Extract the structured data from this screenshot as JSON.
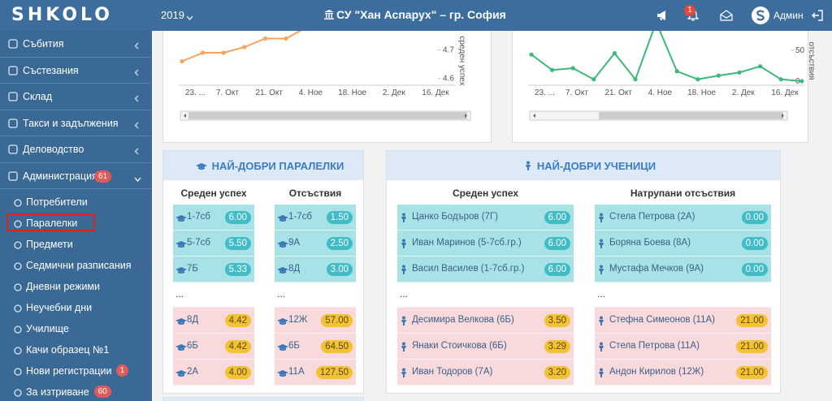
{
  "header": {
    "logo": "SHKOLO",
    "year": "2019",
    "school": "СУ \"Хан Аспарух\" – гр. София",
    "notifications": "1",
    "user": "Админ"
  },
  "sidebar": {
    "items": [
      {
        "label": "Събития"
      },
      {
        "label": "Състезания"
      },
      {
        "label": "Склад"
      },
      {
        "label": "Такси и задължения"
      },
      {
        "label": "Деловодство"
      },
      {
        "label": "Администрация",
        "badge": "61"
      }
    ],
    "subitems": [
      {
        "label": "Потребители"
      },
      {
        "label": "Паралелки",
        "selected": true
      },
      {
        "label": "Предмети"
      },
      {
        "label": "Седмични разписания"
      },
      {
        "label": "Дневни режими"
      },
      {
        "label": "Неучебни дни"
      },
      {
        "label": "Училище"
      },
      {
        "label": "Качи образец №1"
      },
      {
        "label": "Нови регистрации",
        "badge": "1"
      },
      {
        "label": "За изтриване",
        "badge": "60"
      }
    ]
  },
  "charts": [
    {
      "type": "line",
      "y_label": "среден успех",
      "ylim": [
        4.59,
        4.83
      ],
      "yticks": [
        4.6,
        4.7
      ],
      "x_labels": [
        "23. ...",
        "7. Окт",
        "21. Окт",
        "4. Ное",
        "18. Ное",
        "2. Дек",
        "16. Дек"
      ],
      "values": [
        4.66,
        4.69,
        4.69,
        4.71,
        4.74,
        4.74,
        4.78
      ],
      "color": "#f5a35e"
    },
    {
      "type": "line",
      "y_label": "отсъствия",
      "ylim": [
        0,
        110
      ],
      "yticks": [
        0,
        50
      ],
      "x_labels": [
        "23. ...",
        "7. Окт",
        "21. Окт",
        "4. Ное",
        "18. Ное",
        "2. Дек",
        "16. Дек"
      ],
      "values": [
        43,
        18,
        21,
        3,
        45,
        3,
        95,
        16,
        3,
        9,
        14,
        24,
        3,
        0
      ],
      "color": "#3cb878"
    }
  ],
  "panels": [
    {
      "title": "НАЙ-ДОБРИ ПАРАЛЕЛКИ",
      "columns": [
        {
          "header": "Среден успех",
          "top": [
            {
              "name": "1-7сб",
              "value": "6.00"
            },
            {
              "name": "5-7сб",
              "value": "5.50"
            },
            {
              "name": "7Б",
              "value": "5.33"
            }
          ],
          "gap": "...",
          "bottom": [
            {
              "name": "8Д",
              "value": "4.42"
            },
            {
              "name": "6Б",
              "value": "4.42"
            },
            {
              "name": "2А",
              "value": "4.00"
            }
          ]
        },
        {
          "header": "Отсъствия",
          "top": [
            {
              "name": "1-7сб",
              "value": "1.50"
            },
            {
              "name": "9А",
              "value": "2.50"
            },
            {
              "name": "8Д",
              "value": "3.00"
            }
          ],
          "gap": "...",
          "bottom": [
            {
              "name": "12Ж",
              "value": "57.00"
            },
            {
              "name": "6Б",
              "value": "64.50"
            },
            {
              "name": "11А",
              "value": "127.50"
            }
          ]
        }
      ]
    },
    {
      "title": "НАЙ-ДОБРИ УЧЕНИЦИ",
      "columns": [
        {
          "header": "Среден успех",
          "top": [
            {
              "name": "Цанко Бодъров (7Г)",
              "value": "6.00"
            },
            {
              "name": "Иван Маринов (5-7сб.гр.)",
              "value": "6.00"
            },
            {
              "name": "Васил Василев (1-7сб.гр.)",
              "value": "6.00"
            }
          ],
          "gap": "...",
          "bottom": [
            {
              "name": "Десимира Велкова (6Б)",
              "value": "3.50"
            },
            {
              "name": "Янаки Стоичкова (6Б)",
              "value": "3.29"
            },
            {
              "name": "Иван Тодоров (7А)",
              "value": "3.20"
            }
          ]
        },
        {
          "header": "Натрупани отсъствия",
          "top": [
            {
              "name": "Стела Петрова (2А)",
              "value": "0.00"
            },
            {
              "name": "Боряна Боева (8А)",
              "value": "0.00"
            },
            {
              "name": "Мустафа Мечков (9А)",
              "value": "0.00"
            }
          ],
          "gap": "...",
          "bottom": [
            {
              "name": "Стефна Симеонов (11А)",
              "value": "21.00"
            },
            {
              "name": "Стела Петрова (11А)",
              "value": "21.00"
            },
            {
              "name": "Андон Кирилов (12Ж)",
              "value": "21.00"
            }
          ]
        }
      ]
    }
  ]
}
